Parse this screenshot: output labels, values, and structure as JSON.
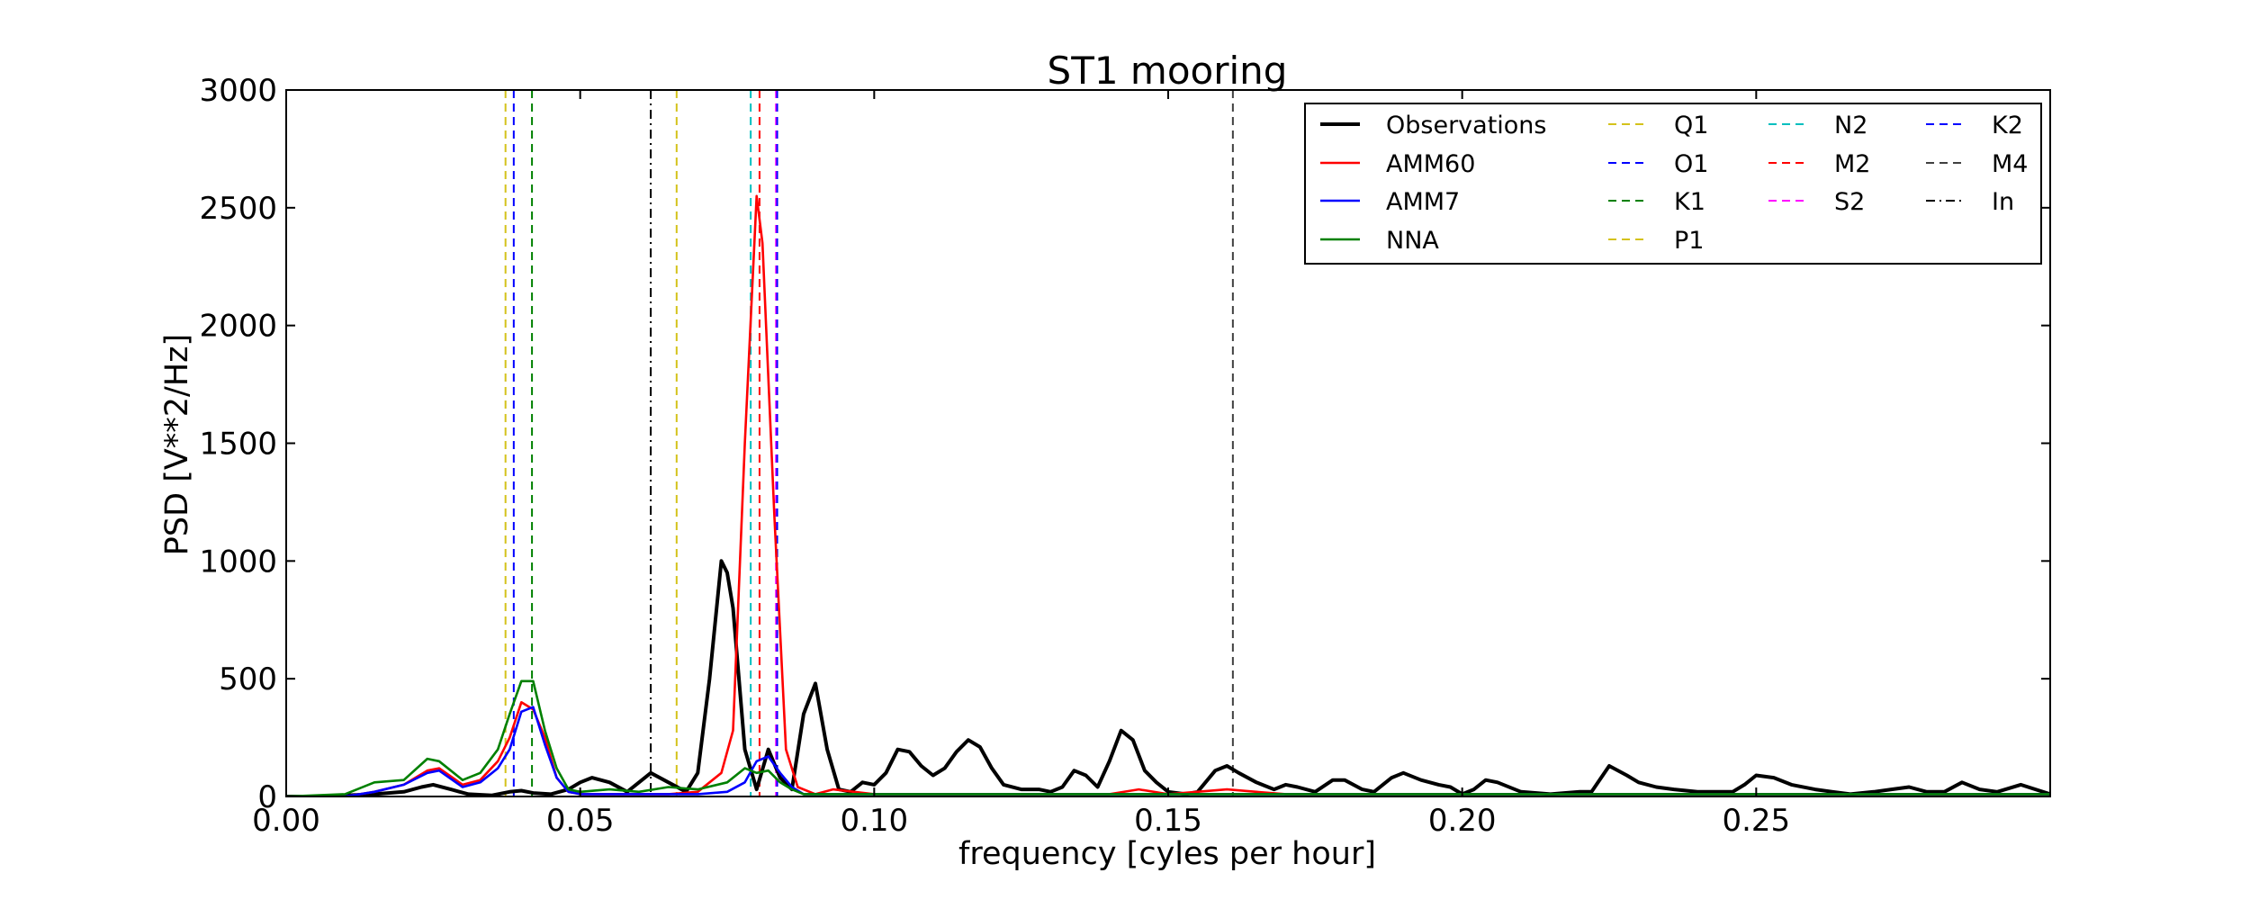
{
  "chart_data": {
    "type": "line",
    "title": "ST1 mooring",
    "xlabel": "frequency [cyles per hour]",
    "ylabel": "PSD [V**2/Hz]",
    "xlim": [
      0,
      0.3
    ],
    "ylim": [
      0,
      3000
    ],
    "xticks": [
      0.0,
      0.05,
      0.1,
      0.15,
      0.2,
      0.25
    ],
    "xtick_labels": [
      "0.00",
      "0.05",
      "0.10",
      "0.15",
      "0.20",
      "0.25"
    ],
    "yticks": [
      0,
      500,
      1000,
      1500,
      2000,
      2500,
      3000
    ],
    "ytick_labels": [
      "0",
      "500",
      "1000",
      "1500",
      "2000",
      "2500",
      "3000"
    ],
    "grid": false,
    "legend_position": "top-right",
    "series": [
      {
        "name": "Observations",
        "color": "#000000",
        "x": [
          0,
          0.005,
          0.01,
          0.015,
          0.02,
          0.023,
          0.025,
          0.028,
          0.031,
          0.035,
          0.038,
          0.04,
          0.042,
          0.045,
          0.048,
          0.05,
          0.052,
          0.055,
          0.058,
          0.06,
          0.062,
          0.065,
          0.068,
          0.07,
          0.072,
          0.074,
          0.075,
          0.076,
          0.078,
          0.08,
          0.082,
          0.084,
          0.086,
          0.088,
          0.09,
          0.092,
          0.094,
          0.096,
          0.098,
          0.1,
          0.102,
          0.104,
          0.106,
          0.108,
          0.11,
          0.112,
          0.114,
          0.116,
          0.118,
          0.12,
          0.122,
          0.125,
          0.128,
          0.13,
          0.132,
          0.134,
          0.136,
          0.138,
          0.14,
          0.142,
          0.144,
          0.146,
          0.148,
          0.15,
          0.153,
          0.155,
          0.158,
          0.16,
          0.162,
          0.165,
          0.168,
          0.17,
          0.172,
          0.175,
          0.178,
          0.18,
          0.183,
          0.185,
          0.188,
          0.19,
          0.193,
          0.196,
          0.198,
          0.2,
          0.202,
          0.204,
          0.206,
          0.21,
          0.215,
          0.22,
          0.222,
          0.225,
          0.228,
          0.23,
          0.233,
          0.236,
          0.24,
          0.243,
          0.246,
          0.248,
          0.25,
          0.253,
          0.256,
          0.26,
          0.263,
          0.266,
          0.27,
          0.273,
          0.276,
          0.279,
          0.282,
          0.285,
          0.288,
          0.291,
          0.295,
          0.3
        ],
        "y": [
          0,
          0,
          5,
          10,
          20,
          40,
          50,
          30,
          10,
          5,
          20,
          25,
          15,
          10,
          30,
          60,
          80,
          60,
          20,
          60,
          100,
          60,
          20,
          100,
          500,
          1000,
          950,
          800,
          200,
          30,
          200,
          80,
          30,
          350,
          480,
          200,
          30,
          20,
          60,
          50,
          100,
          200,
          190,
          130,
          90,
          120,
          190,
          240,
          210,
          120,
          50,
          30,
          30,
          20,
          40,
          110,
          90,
          40,
          150,
          280,
          240,
          110,
          60,
          20,
          10,
          20,
          110,
          130,
          100,
          60,
          30,
          50,
          40,
          20,
          70,
          70,
          30,
          20,
          80,
          100,
          70,
          50,
          40,
          10,
          30,
          70,
          60,
          20,
          10,
          20,
          20,
          130,
          90,
          60,
          40,
          30,
          20,
          20,
          20,
          50,
          90,
          80,
          50,
          30,
          20,
          10,
          20,
          30,
          40,
          20,
          20,
          60,
          30,
          20,
          50,
          10
        ]
      },
      {
        "name": "AMM60",
        "color": "#ff0000",
        "x": [
          0,
          0.01,
          0.015,
          0.02,
          0.024,
          0.026,
          0.03,
          0.033,
          0.036,
          0.038,
          0.04,
          0.042,
          0.044,
          0.046,
          0.048,
          0.05,
          0.055,
          0.06,
          0.065,
          0.07,
          0.072,
          0.074,
          0.076,
          0.078,
          0.08,
          0.081,
          0.083,
          0.085,
          0.087,
          0.09,
          0.093,
          0.1,
          0.11,
          0.12,
          0.13,
          0.14,
          0.145,
          0.15,
          0.16,
          0.165,
          0.17,
          0.2,
          0.25,
          0.3
        ],
        "y": [
          0,
          0,
          20,
          50,
          110,
          120,
          50,
          70,
          150,
          250,
          400,
          370,
          250,
          80,
          20,
          10,
          10,
          10,
          10,
          20,
          60,
          100,
          280,
          1500,
          2550,
          2350,
          1200,
          200,
          40,
          10,
          30,
          10,
          10,
          10,
          10,
          10,
          30,
          10,
          30,
          20,
          10,
          10,
          10,
          10
        ]
      },
      {
        "name": "AMM7",
        "color": "#0000ff",
        "x": [
          0,
          0.01,
          0.015,
          0.02,
          0.024,
          0.026,
          0.03,
          0.033,
          0.036,
          0.038,
          0.04,
          0.042,
          0.044,
          0.046,
          0.048,
          0.05,
          0.055,
          0.06,
          0.065,
          0.07,
          0.075,
          0.078,
          0.08,
          0.082,
          0.084,
          0.086,
          0.088,
          0.09,
          0.1,
          0.15,
          0.2,
          0.25,
          0.3
        ],
        "y": [
          0,
          0,
          20,
          50,
          100,
          110,
          40,
          60,
          120,
          200,
          360,
          380,
          220,
          80,
          20,
          10,
          10,
          10,
          10,
          10,
          20,
          60,
          150,
          170,
          100,
          40,
          10,
          10,
          10,
          10,
          10,
          10,
          10
        ]
      },
      {
        "name": "NNA",
        "color": "#008000",
        "x": [
          0,
          0.01,
          0.015,
          0.02,
          0.024,
          0.026,
          0.03,
          0.033,
          0.036,
          0.038,
          0.04,
          0.042,
          0.044,
          0.046,
          0.048,
          0.05,
          0.055,
          0.06,
          0.065,
          0.07,
          0.075,
          0.078,
          0.08,
          0.082,
          0.084,
          0.086,
          0.088,
          0.09,
          0.1,
          0.15,
          0.2,
          0.25,
          0.3
        ],
        "y": [
          0,
          10,
          60,
          70,
          160,
          150,
          70,
          100,
          200,
          350,
          490,
          490,
          280,
          120,
          30,
          20,
          30,
          20,
          40,
          30,
          60,
          120,
          100,
          110,
          60,
          30,
          10,
          10,
          10,
          10,
          10,
          10,
          10
        ]
      }
    ],
    "reference_lines": [
      {
        "name": "Q1",
        "x": 0.0373,
        "color": "#d4c21b",
        "dash": "dashed"
      },
      {
        "name": "O1",
        "x": 0.0387,
        "color": "#0000ff",
        "dash": "dashed"
      },
      {
        "name": "K1",
        "x": 0.0418,
        "color": "#008000",
        "dash": "dashed"
      },
      {
        "name": "P1",
        "x": 0.0664,
        "color": "#d4c21b",
        "dash": "dashed"
      },
      {
        "name": "N2",
        "x": 0.079,
        "color": "#00bfbf",
        "dash": "dashed"
      },
      {
        "name": "M2",
        "x": 0.0805,
        "color": "#ff0000",
        "dash": "dashed"
      },
      {
        "name": "S2",
        "x": 0.0833,
        "color": "#ff00ff",
        "dash": "dashed"
      },
      {
        "name": "K2",
        "x": 0.0835,
        "color": "#0000ff",
        "dash": "dashed"
      },
      {
        "name": "M4",
        "x": 0.161,
        "color": "#404040",
        "dash": "dashed"
      },
      {
        "name": "In",
        "x": 0.062,
        "color": "#000000",
        "dash": "dashdot"
      }
    ],
    "legend": [
      [
        "Observations",
        "AMM60",
        "AMM7",
        "NNA"
      ],
      [
        "Q1",
        "O1",
        "K1",
        "P1"
      ],
      [
        "N2",
        "M2",
        "S2"
      ],
      [
        "K2",
        "M4",
        "In"
      ]
    ]
  }
}
